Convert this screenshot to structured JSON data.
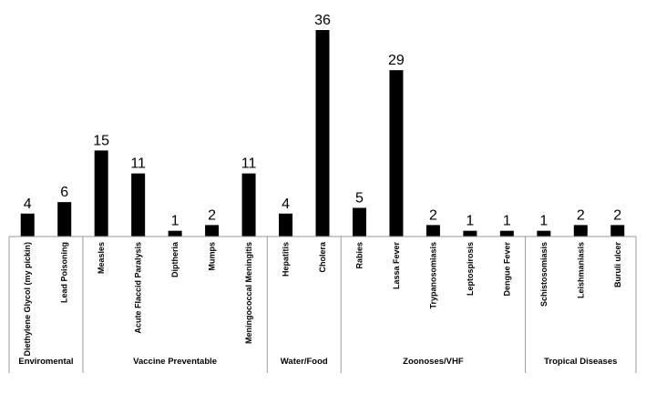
{
  "chart_data": {
    "type": "bar",
    "title": "",
    "xlabel": "",
    "ylabel": "",
    "color": "#000000",
    "data_labels": true,
    "ylim": [
      0,
      36
    ],
    "groups": [
      {
        "name": "Enviromental",
        "count": 2
      },
      {
        "name": "Vaccine Preventable",
        "count": 5
      },
      {
        "name": "Water/Food",
        "count": 2
      },
      {
        "name": "Zoonoses/VHF",
        "count": 5
      },
      {
        "name": "Tropical Diseases",
        "count": 3
      }
    ],
    "categories": [
      "Diethylene Glycol (my pickin)",
      "Lead Poisoning",
      "Measles",
      "Acute Flaccid Paralysis",
      "Diptheria",
      "Mumps",
      "Meningococcal Meningitis",
      "Hepatitis",
      "Cholera",
      "Rabies",
      "Lassa Fever",
      "Trypanosomiasis",
      "Leptospirosis",
      "Dengue Fever",
      "Schistosomiasis",
      "Leishmaniasis",
      "Buruli ulcer"
    ],
    "values": [
      4,
      6,
      15,
      11,
      1,
      2,
      11,
      4,
      36,
      5,
      29,
      2,
      1,
      1,
      1,
      2,
      2
    ]
  }
}
